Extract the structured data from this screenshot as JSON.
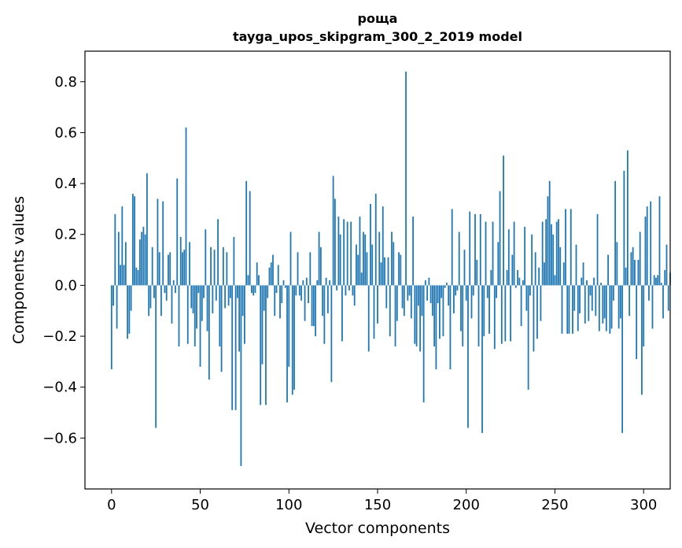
{
  "chart_data": {
    "type": "bar",
    "title": "роща",
    "subtitle": "tayga_upos_skipgram_300_2_2019 model",
    "xlabel": "Vector components",
    "ylabel": "Components values",
    "xlim": [
      -15,
      315
    ],
    "ylim": [
      -0.8,
      0.92
    ],
    "xticks": [
      0,
      50,
      100,
      150,
      200,
      250,
      300
    ],
    "yticks": [
      -0.6,
      -0.4,
      -0.2,
      0.0,
      0.2,
      0.4,
      0.6,
      0.8
    ],
    "ytick_labels": [
      "−0.6",
      "−0.4",
      "−0.2",
      "0.0",
      "0.2",
      "0.4",
      "0.6",
      "0.8"
    ],
    "xtick_labels": [
      "0",
      "50",
      "100",
      "150",
      "200",
      "250",
      "300"
    ],
    "bar_color": "#1f77b4",
    "grid": false,
    "values": [
      -0.33,
      -0.08,
      0.28,
      -0.17,
      0.21,
      0.08,
      0.31,
      0.08,
      0.17,
      -0.21,
      -0.19,
      -0.1,
      0.36,
      0.35,
      0.07,
      0.06,
      0.18,
      0.21,
      0.23,
      0.2,
      0.44,
      -0.12,
      -0.09,
      0.15,
      -0.05,
      -0.56,
      0.34,
      0.13,
      -0.12,
      0.33,
      -0.03,
      -0.06,
      0.12,
      0.13,
      -0.15,
      0.02,
      -0.03,
      0.42,
      -0.24,
      0.19,
      0.13,
      0.14,
      0.62,
      -0.23,
      0.17,
      -0.09,
      -0.11,
      -0.24,
      -0.17,
      -0.03,
      -0.32,
      -0.14,
      -0.05,
      0.22,
      -0.18,
      -0.37,
      0.15,
      -0.11,
      0.14,
      -0.06,
      0.26,
      -0.24,
      -0.34,
      0.15,
      -0.09,
      0.13,
      -0.08,
      -0.05,
      -0.49,
      0.19,
      -0.49,
      -0.05,
      -0.26,
      -0.71,
      -0.12,
      -0.23,
      0.41,
      0.04,
      0.37,
      -0.03,
      -0.04,
      -0.03,
      0.09,
      0.04,
      -0.47,
      -0.31,
      -0.1,
      -0.47,
      -0.05,
      0.07,
      0.09,
      0.12,
      -0.12,
      -0.03,
      0.08,
      -0.13,
      -0.07,
      0.02,
      -0.01,
      -0.46,
      -0.32,
      0.21,
      -0.43,
      -0.41,
      -0.04,
      0.13,
      -0.04,
      -0.06,
      0.02,
      -0.14,
      0.03,
      -0.07,
      0.13,
      -0.16,
      -0.16,
      -0.2,
      0.02,
      0.21,
      0.15,
      -0.12,
      -0.23,
      0.03,
      -0.11,
      0.02,
      -0.38,
      0.43,
      0.34,
      -0.02,
      0.27,
      0.2,
      -0.22,
      0.26,
      -0.04,
      0.25,
      -0.02,
      0.25,
      -0.04,
      -0.08,
      0.16,
      0.12,
      0.27,
      0.05,
      0.21,
      0.2,
      0.13,
      -0.26,
      0.32,
      0.16,
      -0.21,
      0.36,
      -0.15,
      0.21,
      0.09,
      0.31,
      0.11,
      -0.09,
      0.11,
      -0.2,
      0.21,
      0.17,
      -0.24,
      -0.14,
      0.13,
      0.12,
      -0.09,
      -0.12,
      0.84,
      -0.06,
      -0.04,
      -0.13,
      0.27,
      -0.23,
      -0.24,
      -0.08,
      -0.26,
      -0.12,
      -0.46,
      0.02,
      -0.06,
      0.03,
      -0.07,
      -0.12,
      -0.24,
      -0.33,
      -0.07,
      -0.21,
      -0.05,
      -0.2,
      -0.01,
      0.01,
      -0.08,
      -0.33,
      0.3,
      -0.11,
      -0.04,
      -0.02,
      0.21,
      -0.18,
      -0.24,
      0.14,
      -0.06,
      -0.56,
      0.29,
      -0.13,
      -0.04,
      0.28,
      0.1,
      -0.24,
      0.28,
      -0.58,
      -0.2,
      0.25,
      -0.05,
      -0.19,
      0.06,
      0.25,
      -0.25,
      -0.05,
      0.17,
      0.37,
      -0.23,
      0.51,
      -0.22,
      0.06,
      0.22,
      -0.22,
      0.12,
      0.25,
      -0.01,
      0.06,
      0.03,
      -0.16,
      0.02,
      0.23,
      -0.1,
      -0.41,
      -0.04,
      0.2,
      -0.26,
      0.13,
      -0.21,
      0.07,
      -0.14,
      0.25,
      0.09,
      0.26,
      0.35,
      0.41,
      0.24,
      0.2,
      0.04,
      0.25,
      0.26,
      0.15,
      -0.19,
      0.09,
      0.3,
      -0.19,
      -0.19,
      0.3,
      -0.19,
      -0.1,
      0.16,
      -0.18,
      -0.11,
      0.03,
      0.09,
      -0.15,
      0.02,
      -0.14,
      -0.04,
      -0.1,
      0.03,
      -0.12,
      0.28,
      -0.18,
      0.01,
      -0.15,
      -0.13,
      -0.18,
      0.12,
      -0.19,
      -0.17,
      -0.06,
      0.41,
      0.17,
      -0.17,
      -0.13,
      -0.58,
      0.45,
      0.07,
      0.53,
      -0.12,
      0.13,
      0.15,
      0.1,
      -0.29,
      0.1,
      0.21,
      -0.43,
      -0.24,
      0.27,
      0.31,
      -0.06,
      0.33,
      -0.17,
      0.04,
      0.03,
      0.04,
      0.35,
      0.01,
      -0.13,
      0.06,
      0.16,
      -0.1,
      0.05
    ]
  }
}
